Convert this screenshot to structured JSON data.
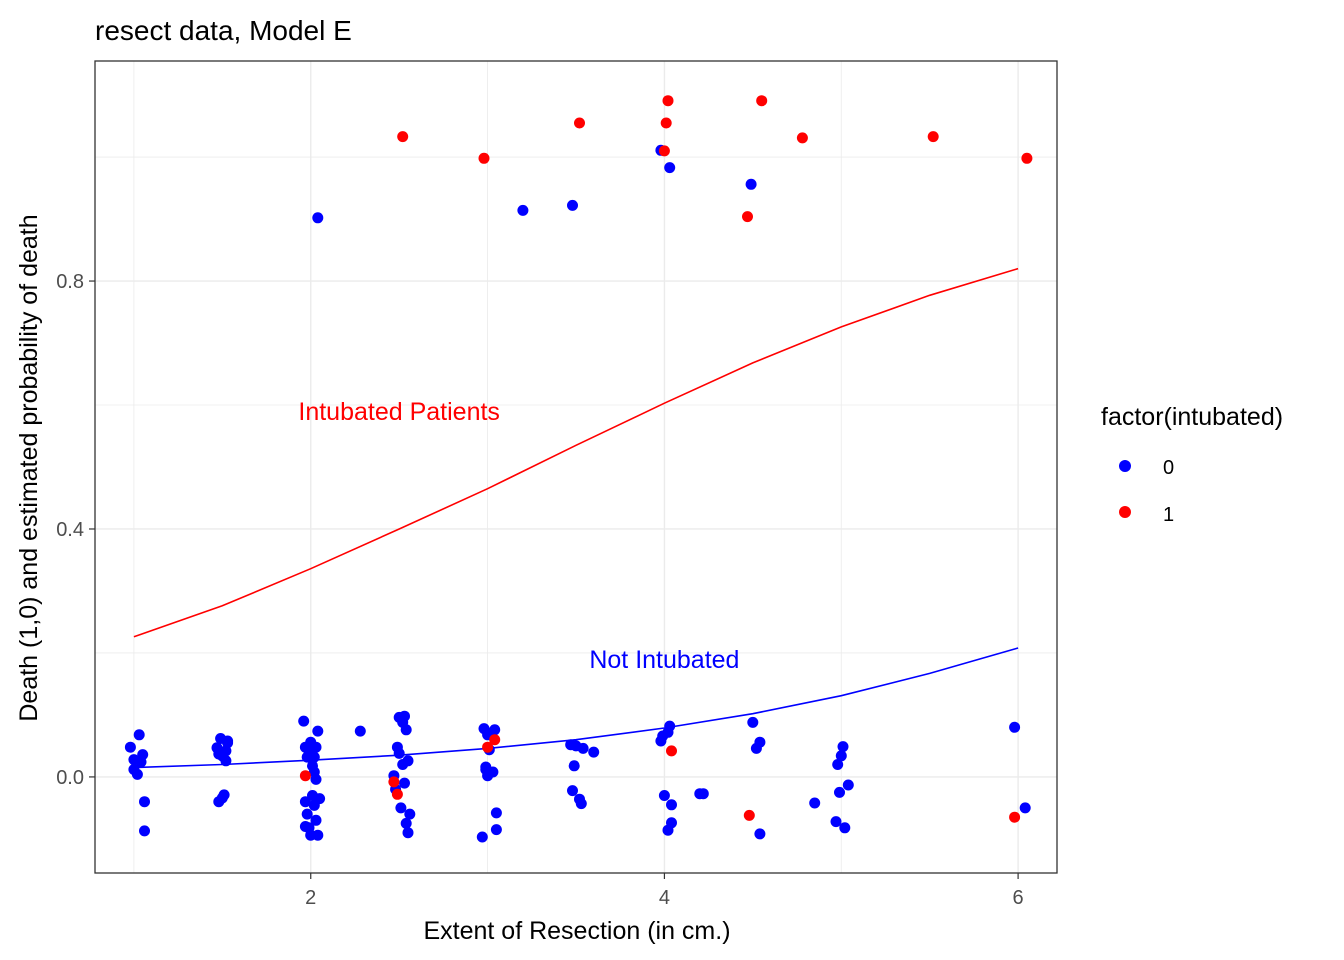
{
  "chart_data": {
    "type": "scatter",
    "title": "resect data, Model E",
    "xlabel": "Extent of Resection (in cm.)",
    "ylabel": "Death (1,0) and estimated probability of death",
    "xlim": [
      0.78,
      6.22
    ],
    "ylim": [
      -0.155,
      1.155
    ],
    "x_ticks": [
      2,
      4,
      6
    ],
    "x_tick_labels": [
      "2",
      "4",
      "6"
    ],
    "y_ticks": [
      0.0,
      0.4,
      0.8
    ],
    "y_tick_labels": [
      "0.0",
      "0.4",
      "0.8"
    ],
    "grid": true,
    "legend": {
      "title": "factor(intubated)",
      "position": "right",
      "entries": [
        {
          "label": "0",
          "color": "#0000ff"
        },
        {
          "label": "1",
          "color": "#ff0000"
        }
      ]
    },
    "annotations": [
      {
        "text": "Intubated Patients",
        "x": 2.5,
        "y": 0.59,
        "color": "#ff0000"
      },
      {
        "text": "Not Intubated",
        "x": 4.0,
        "y": 0.19,
        "color": "#0000ff"
      }
    ],
    "lines": [
      {
        "name": "1",
        "color": "#ff0000",
        "x": [
          1.0,
          1.5,
          2.0,
          2.5,
          3.0,
          3.5,
          4.0,
          4.5,
          5.0,
          5.5,
          6.0
        ],
        "y": [
          0.226,
          0.276,
          0.336,
          0.4,
          0.465,
          0.535,
          0.603,
          0.668,
          0.726,
          0.777,
          0.82
        ]
      },
      {
        "name": "0",
        "color": "#0000ff",
        "x": [
          1.0,
          1.5,
          2.0,
          2.5,
          3.0,
          3.5,
          4.0,
          4.5,
          5.0,
          5.5,
          6.0
        ],
        "y": [
          0.015,
          0.02,
          0.027,
          0.035,
          0.046,
          0.06,
          0.079,
          0.102,
          0.131,
          0.167,
          0.208
        ]
      }
    ],
    "series": [
      {
        "name": "0",
        "color": "#0000ff",
        "points": [
          [
            0.98,
            0.048
          ],
          [
            1.0,
            0.028
          ],
          [
            1.02,
            0.004
          ],
          [
            1.0,
            0.012
          ],
          [
            1.03,
            0.068
          ],
          [
            1.05,
            0.036
          ],
          [
            1.04,
            0.024
          ],
          [
            1.06,
            -0.04
          ],
          [
            1.06,
            -0.087
          ],
          [
            1.47,
            0.047
          ],
          [
            1.48,
            0.037
          ],
          [
            1.49,
            0.062
          ],
          [
            1.5,
            0.034
          ],
          [
            1.52,
            0.042
          ],
          [
            1.53,
            0.055
          ],
          [
            1.48,
            -0.04
          ],
          [
            1.5,
            -0.034
          ],
          [
            1.51,
            -0.029
          ],
          [
            1.52,
            0.026
          ],
          [
            1.53,
            0.058
          ],
          [
            1.96,
            0.09
          ],
          [
            1.97,
            0.048
          ],
          [
            1.98,
            0.032
          ],
          [
            1.99,
            0.042
          ],
          [
            2.0,
            0.056
          ],
          [
            2.01,
            0.018
          ],
          [
            2.02,
            0.008
          ],
          [
            2.02,
            0.032
          ],
          [
            2.03,
            0.048
          ],
          [
            2.04,
            0.074
          ],
          [
            2.03,
            -0.004
          ],
          [
            1.97,
            -0.04
          ],
          [
            1.98,
            -0.06
          ],
          [
            1.99,
            -0.082
          ],
          [
            2.0,
            -0.094
          ],
          [
            2.01,
            -0.03
          ],
          [
            2.02,
            -0.046
          ],
          [
            2.03,
            -0.07
          ],
          [
            2.04,
            -0.094
          ],
          [
            2.05,
            -0.035
          ],
          [
            1.97,
            -0.08
          ],
          [
            2.28,
            0.074
          ],
          [
            2.47,
            0.002
          ],
          [
            2.48,
            -0.02
          ],
          [
            2.49,
            0.048
          ],
          [
            2.5,
            0.038
          ],
          [
            2.51,
            -0.05
          ],
          [
            2.52,
            0.02
          ],
          [
            2.52,
            0.088
          ],
          [
            2.53,
            0.098
          ],
          [
            2.54,
            0.076
          ],
          [
            2.55,
            0.026
          ],
          [
            2.53,
            -0.01
          ],
          [
            2.54,
            -0.075
          ],
          [
            2.55,
            -0.09
          ],
          [
            2.56,
            -0.06
          ],
          [
            2.5,
            0.096
          ],
          [
            2.97,
            -0.097
          ],
          [
            2.98,
            0.078
          ],
          [
            2.99,
            0.012
          ],
          [
            3.0,
            0.068
          ],
          [
            3.0,
            0.002
          ],
          [
            3.01,
            0.044
          ],
          [
            3.02,
            0.07
          ],
          [
            3.03,
            0.008
          ],
          [
            3.04,
            0.076
          ],
          [
            3.05,
            -0.058
          ],
          [
            3.05,
            -0.085
          ],
          [
            2.99,
            0.016
          ],
          [
            3.47,
            0.052
          ],
          [
            3.48,
            -0.022
          ],
          [
            3.49,
            0.018
          ],
          [
            3.5,
            0.05
          ],
          [
            3.52,
            -0.036
          ],
          [
            3.53,
            -0.043
          ],
          [
            3.54,
            0.046
          ],
          [
            3.6,
            0.04
          ],
          [
            3.98,
            0.058
          ],
          [
            3.99,
            0.066
          ],
          [
            4.0,
            -0.03
          ],
          [
            4.02,
            0.072
          ],
          [
            4.02,
            -0.086
          ],
          [
            4.03,
            0.082
          ],
          [
            4.04,
            -0.045
          ],
          [
            4.04,
            -0.074
          ],
          [
            4.2,
            -0.027
          ],
          [
            4.22,
            -0.027
          ],
          [
            4.5,
            0.088
          ],
          [
            4.52,
            0.046
          ],
          [
            4.54,
            0.056
          ],
          [
            4.54,
            -0.092
          ],
          [
            4.85,
            -0.042
          ],
          [
            4.97,
            -0.072
          ],
          [
            4.98,
            0.02
          ],
          [
            4.99,
            -0.025
          ],
          [
            5.0,
            0.034
          ],
          [
            5.01,
            0.049
          ],
          [
            5.02,
            -0.082
          ],
          [
            5.04,
            -0.013
          ],
          [
            5.98,
            0.08
          ],
          [
            6.04,
            -0.05
          ],
          [
            2.04,
            0.902
          ],
          [
            3.2,
            0.914
          ],
          [
            3.48,
            0.922
          ],
          [
            3.98,
            1.011
          ],
          [
            4.03,
            0.983
          ],
          [
            4.49,
            0.956
          ]
        ]
      },
      {
        "name": "1",
        "color": "#ff0000",
        "points": [
          [
            1.97,
            0.002
          ],
          [
            2.47,
            -0.008
          ],
          [
            2.49,
            -0.028
          ],
          [
            3.0,
            0.048
          ],
          [
            3.04,
            0.06
          ],
          [
            4.04,
            0.042
          ],
          [
            4.48,
            -0.062
          ],
          [
            5.98,
            -0.065
          ],
          [
            2.52,
            1.033
          ],
          [
            2.98,
            0.998
          ],
          [
            3.52,
            1.055
          ],
          [
            4.0,
            1.01
          ],
          [
            4.01,
            1.055
          ],
          [
            4.02,
            1.091
          ],
          [
            4.47,
            0.904
          ],
          [
            4.55,
            1.091
          ],
          [
            4.78,
            1.031
          ],
          [
            5.52,
            1.033
          ],
          [
            6.05,
            0.998
          ]
        ]
      }
    ]
  }
}
